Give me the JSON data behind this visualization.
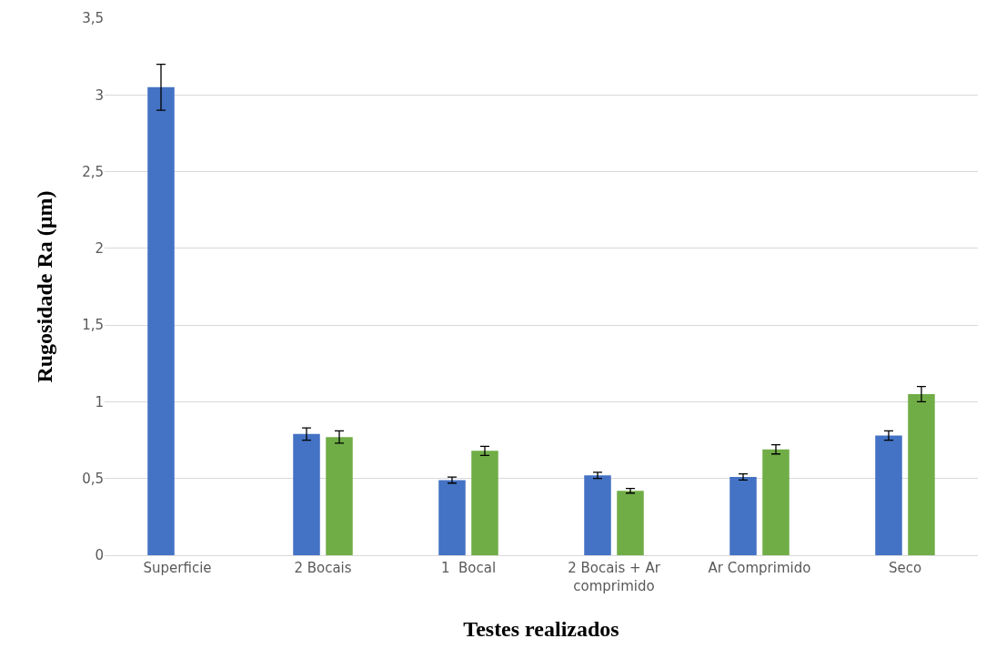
{
  "chart_data": {
    "type": "bar",
    "xlabel": "Testes realizados",
    "ylabel": "Rugosidade Ra (µm)",
    "categories": [
      "Superficie",
      "2 Bocais",
      "1  Bocal",
      "2 Bocais + Ar comprimido",
      "Ar Comprimido",
      "Seco"
    ],
    "series": [
      {
        "color": "#4472c4",
        "values": [
          3.05,
          0.79,
          0.49,
          0.52,
          0.51,
          0.78
        ],
        "errors": [
          0.15,
          0.04,
          0.02,
          0.02,
          0.02,
          0.03
        ]
      },
      {
        "color": "#70ad47",
        "values": [
          null,
          0.77,
          0.68,
          0.42,
          0.69,
          1.05
        ],
        "errors": [
          null,
          0.04,
          0.03,
          0.015,
          0.03,
          0.05
        ]
      }
    ],
    "ylim": [
      0,
      3.5
    ],
    "yticks": [
      {
        "value": 0,
        "label": "0"
      },
      {
        "value": 0.5,
        "label": "0,5"
      },
      {
        "value": 1,
        "label": "1"
      },
      {
        "value": 1.5,
        "label": "1,5"
      },
      {
        "value": 2,
        "label": "2"
      },
      {
        "value": 2.5,
        "label": "2,5"
      },
      {
        "value": 3,
        "label": "3"
      },
      {
        "value": 3.5,
        "label": "3,5"
      }
    ],
    "grid": "y"
  }
}
